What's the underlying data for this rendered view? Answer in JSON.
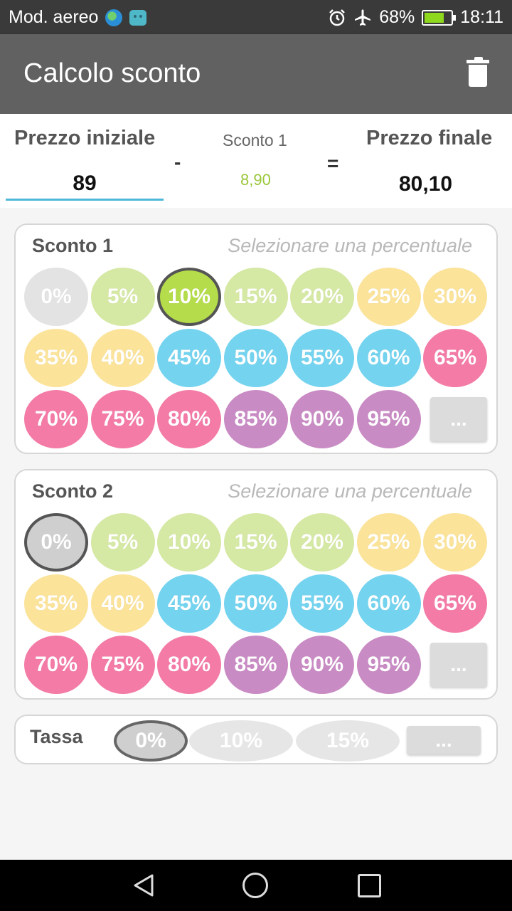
{
  "status_bar": {
    "mode_label": "Mod. aereo",
    "battery": "68%",
    "time": "18:11"
  },
  "app_bar": {
    "title": "Calcolo sconto"
  },
  "header": {
    "initial_label": "Prezzo iniziale",
    "initial_value": "89",
    "minus": "-",
    "discount_label": "Sconto 1",
    "discount_value": "8,90",
    "equals": "=",
    "final_label": "Prezzo finale",
    "final_value": "80,10"
  },
  "sconto1": {
    "title": "Sconto 1",
    "hint": "Selezionare una percentuale",
    "selected": "10%",
    "more": "..."
  },
  "sconto2": {
    "title": "Sconto 2",
    "hint": "Selezionare una percentuale",
    "selected": "0%",
    "more": "..."
  },
  "percentages": [
    {
      "label": "0%",
      "color": "#e3e3e3"
    },
    {
      "label": "5%",
      "color": "#d5e8a4"
    },
    {
      "label": "10%",
      "color": "#d5e8a4"
    },
    {
      "label": "15%",
      "color": "#d5e8a4"
    },
    {
      "label": "20%",
      "color": "#d5e8a4"
    },
    {
      "label": "25%",
      "color": "#fbe39a"
    },
    {
      "label": "30%",
      "color": "#fbe39a"
    },
    {
      "label": "35%",
      "color": "#fbe39a"
    },
    {
      "label": "40%",
      "color": "#fbe39a"
    },
    {
      "label": "45%",
      "color": "#74d3ef"
    },
    {
      "label": "50%",
      "color": "#74d3ef"
    },
    {
      "label": "55%",
      "color": "#74d3ef"
    },
    {
      "label": "60%",
      "color": "#74d3ef"
    },
    {
      "label": "65%",
      "color": "#f37ba6"
    },
    {
      "label": "70%",
      "color": "#f37ba6"
    },
    {
      "label": "75%",
      "color": "#f37ba6"
    },
    {
      "label": "80%",
      "color": "#f37ba6"
    },
    {
      "label": "85%",
      "color": "#c98bc4"
    },
    {
      "label": "90%",
      "color": "#c98bc4"
    },
    {
      "label": "95%",
      "color": "#c98bc4"
    }
  ],
  "selected_colors": {
    "sconto1": "#b5dc4a",
    "sconto2": "#cfcfcf"
  },
  "tassa": {
    "title": "Tassa",
    "options": [
      "0%",
      "10%",
      "15%"
    ],
    "selected": "0%",
    "more": "..."
  }
}
